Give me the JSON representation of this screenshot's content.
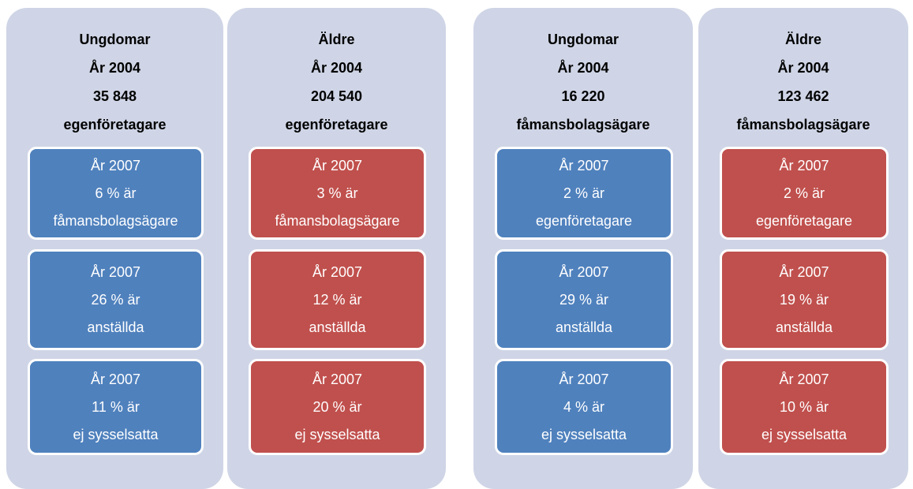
{
  "columns": [
    {
      "header": [
        "Ungdomar",
        "År 2004",
        "35 848",
        "egenföretagare"
      ],
      "color": "#4f81bd",
      "boxes": [
        [
          "År 2007",
          "6 % är",
          "fåmansbolagsägare"
        ],
        [
          "År 2007",
          "26 % är",
          "anställda"
        ],
        [
          "År 2007",
          "11 % är",
          "ej sysselsatta"
        ]
      ]
    },
    {
      "header": [
        "Äldre",
        "År 2004",
        "204 540",
        "egenföretagare"
      ],
      "color": "#c0504d",
      "boxes": [
        [
          "År 2007",
          "3 % är",
          "fåmansbolagsägare"
        ],
        [
          "År 2007",
          "12 % är",
          "anställda"
        ],
        [
          "År 2007",
          "20 % är",
          "ej sysselsatta"
        ]
      ]
    },
    {
      "header": [
        "Ungdomar",
        "År 2004",
        "16 220",
        "fåmansbolagsägare"
      ],
      "color": "#4f81bd",
      "boxes": [
        [
          "År 2007",
          "2 % är",
          "egenföretagare"
        ],
        [
          "År 2007",
          "29 % är",
          "anställda"
        ],
        [
          "År 2007",
          "4 % är",
          "ej sysselsatta"
        ]
      ]
    },
    {
      "header": [
        "Äldre",
        "År 2004",
        "123 462",
        "fåmansbolagsägare"
      ],
      "color": "#c0504d",
      "boxes": [
        [
          "År 2007",
          "2 % är",
          "egenföretagare"
        ],
        [
          "År 2007",
          "19 % är",
          "anställda"
        ],
        [
          "År 2007",
          "10 % är",
          "ej sysselsatta"
        ]
      ]
    }
  ]
}
